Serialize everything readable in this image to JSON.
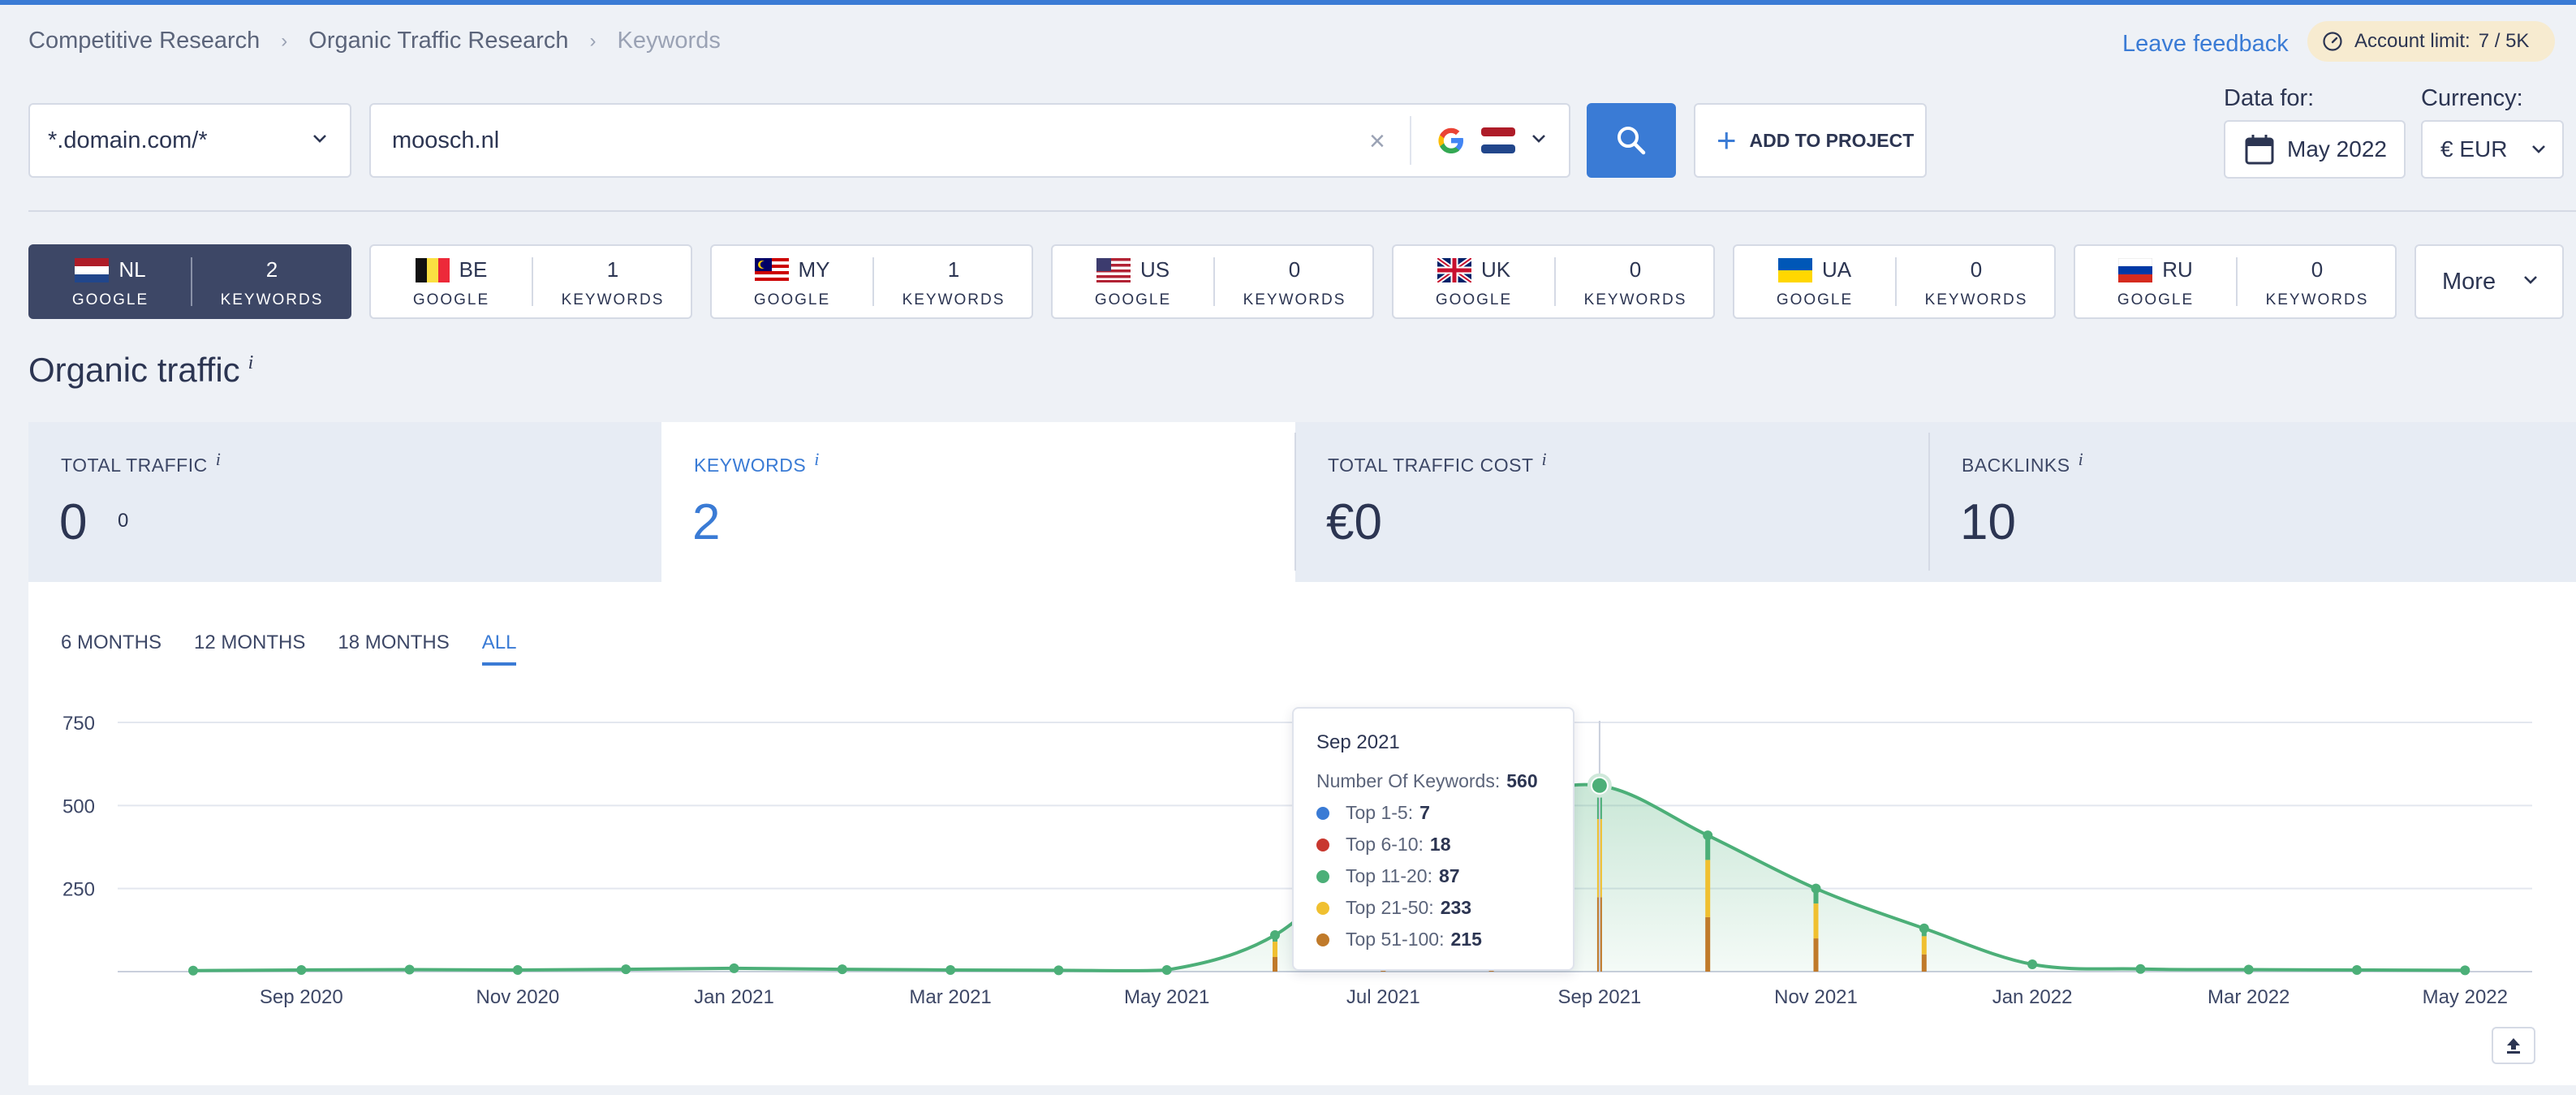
{
  "breadcrumb": [
    "Competitive Research",
    "Organic Traffic Research",
    "Keywords"
  ],
  "header": {
    "feedback": "Leave feedback",
    "account_limit_label": "Account limit:",
    "account_limit_value": "7 / 5K",
    "info_mark": "i"
  },
  "search": {
    "mode": "*.domain.com/*",
    "query": "moosch.nl",
    "engine_icon": "google-icon",
    "country_flag": "NL"
  },
  "add_to_project": "ADD TO PROJECT",
  "data_for_label": "Data for:",
  "date_value": "May 2022",
  "currency_label": "Currency:",
  "currency_value": "€ EUR",
  "countries": [
    {
      "code": "NL",
      "engine": "GOOGLE",
      "count": "2",
      "unit": "KEYWORDS",
      "active": true
    },
    {
      "code": "BE",
      "engine": "GOOGLE",
      "count": "1",
      "unit": "KEYWORDS"
    },
    {
      "code": "MY",
      "engine": "GOOGLE",
      "count": "1",
      "unit": "KEYWORDS"
    },
    {
      "code": "US",
      "engine": "GOOGLE",
      "count": "0",
      "unit": "KEYWORDS"
    },
    {
      "code": "UK",
      "engine": "GOOGLE",
      "count": "0",
      "unit": "KEYWORDS"
    },
    {
      "code": "UA",
      "engine": "GOOGLE",
      "count": "0",
      "unit": "KEYWORDS"
    },
    {
      "code": "RU",
      "engine": "GOOGLE",
      "count": "0",
      "unit": "KEYWORDS"
    }
  ],
  "more_label": "More",
  "section_title": "Organic traffic",
  "metrics": [
    {
      "label": "TOTAL TRAFFIC",
      "value": "0",
      "sub": "0"
    },
    {
      "label": "KEYWORDS",
      "value": "2"
    },
    {
      "label": "TOTAL TRAFFIC COST",
      "value": "€0"
    },
    {
      "label": "BACKLINKS",
      "value": "10"
    }
  ],
  "periods": [
    "6 MONTHS",
    "12 MONTHS",
    "18 MONTHS",
    "ALL"
  ],
  "active_period": "ALL",
  "tooltip": {
    "title": "Sep 2021",
    "total_label": "Number Of Keywords:",
    "total_value": "560",
    "rows": [
      {
        "label": "Top 1-5:",
        "value": "7",
        "color": "#3a7bd5"
      },
      {
        "label": "Top 6-10:",
        "value": "18",
        "color": "#c8382f"
      },
      {
        "label": "Top 11-20:",
        "value": "87",
        "color": "#4caf78"
      },
      {
        "label": "Top 21-50:",
        "value": "233",
        "color": "#f0c030"
      },
      {
        "label": "Top 51-100:",
        "value": "215",
        "color": "#c07a2a"
      }
    ]
  },
  "chart_data": {
    "type": "area",
    "x": [
      "Aug 2020",
      "Sep 2020",
      "Oct 2020",
      "Nov 2020",
      "Dec 2020",
      "Jan 2021",
      "Feb 2021",
      "Mar 2021",
      "Apr 2021",
      "May 2021",
      "Jun 2021",
      "Jul 2021",
      "Aug 2021",
      "Sep 2021",
      "Oct 2021",
      "Nov 2021",
      "Dec 2021",
      "Jan 2022",
      "Feb 2022",
      "Mar 2022",
      "Apr 2022",
      "May 2022"
    ],
    "values": [
      3,
      5,
      6,
      5,
      7,
      10,
      7,
      5,
      4,
      5,
      110,
      380,
      500,
      560,
      410,
      250,
      130,
      22,
      8,
      6,
      5,
      4
    ],
    "x_tick_labels": [
      "Sep 2020",
      "Nov 2020",
      "Jan 2021",
      "Mar 2021",
      "May 2021",
      "Jul 2021",
      "Sep 2021",
      "Nov 2021",
      "Jan 2022",
      "Mar 2022",
      "May 2022"
    ],
    "y_tick_labels": [
      "250",
      "500",
      "750"
    ],
    "ylim": [
      0,
      750
    ],
    "colors": {
      "line": "#4caf78",
      "fill": "#4caf78"
    },
    "highlight": "Sep 2021",
    "grid": true
  }
}
